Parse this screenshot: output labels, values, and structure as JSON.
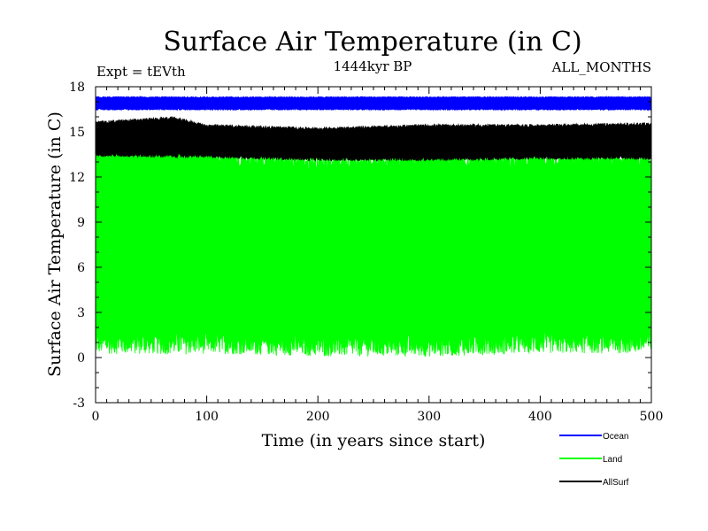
{
  "chart_data": {
    "type": "line",
    "title": "Surface Air Temperature (in C)",
    "subtitle": "1444kyr BP",
    "left_annotation": "Expt = tEVth",
    "right_annotation": "ALL_MONTHS",
    "xlabel": "Time (in years since start)",
    "ylabel": "Surface Air Temperature (in C)",
    "xlim": [
      0,
      500
    ],
    "ylim": [
      -3,
      18
    ],
    "x_ticks": [
      0,
      100,
      200,
      300,
      400,
      500
    ],
    "y_ticks": [
      -3,
      0,
      3,
      6,
      9,
      12,
      15,
      18
    ],
    "grid": false,
    "legend_position": "bottom-right",
    "series": [
      {
        "name": "Ocean",
        "color": "#0000ff",
        "style": "monthly oscillation band",
        "min_anchors_x": [
          0,
          500
        ],
        "min_anchors": [
          16.5,
          16.5
        ],
        "max_anchors_x": [
          0,
          500
        ],
        "max_anchors": [
          17.3,
          17.3
        ]
      },
      {
        "name": "Land",
        "color": "#00ff00",
        "style": "monthly oscillation band",
        "min_anchors_x": [
          0,
          100,
          200,
          300,
          400,
          500
        ],
        "min_anchors": [
          1.0,
          1.0,
          0.8,
          0.8,
          1.0,
          1.0
        ],
        "max_anchors_x": [
          0,
          20,
          50,
          75,
          100,
          130,
          200,
          300,
          400,
          500
        ],
        "max_anchors": [
          13.6,
          14.0,
          14.2,
          14.5,
          13.5,
          13.2,
          13.0,
          13.2,
          13.2,
          13.3
        ]
      },
      {
        "name": "AllSurf",
        "color": "#000000",
        "style": "monthly oscillation band",
        "min_anchors_x": [
          0,
          100,
          200,
          300,
          400,
          500
        ],
        "min_anchors": [
          13.5,
          13.4,
          13.2,
          13.2,
          13.3,
          13.3
        ],
        "max_anchors_x": [
          0,
          70,
          100,
          200,
          300,
          400,
          500
        ],
        "max_anchors": [
          15.6,
          15.9,
          15.4,
          15.2,
          15.4,
          15.4,
          15.5
        ]
      }
    ]
  }
}
